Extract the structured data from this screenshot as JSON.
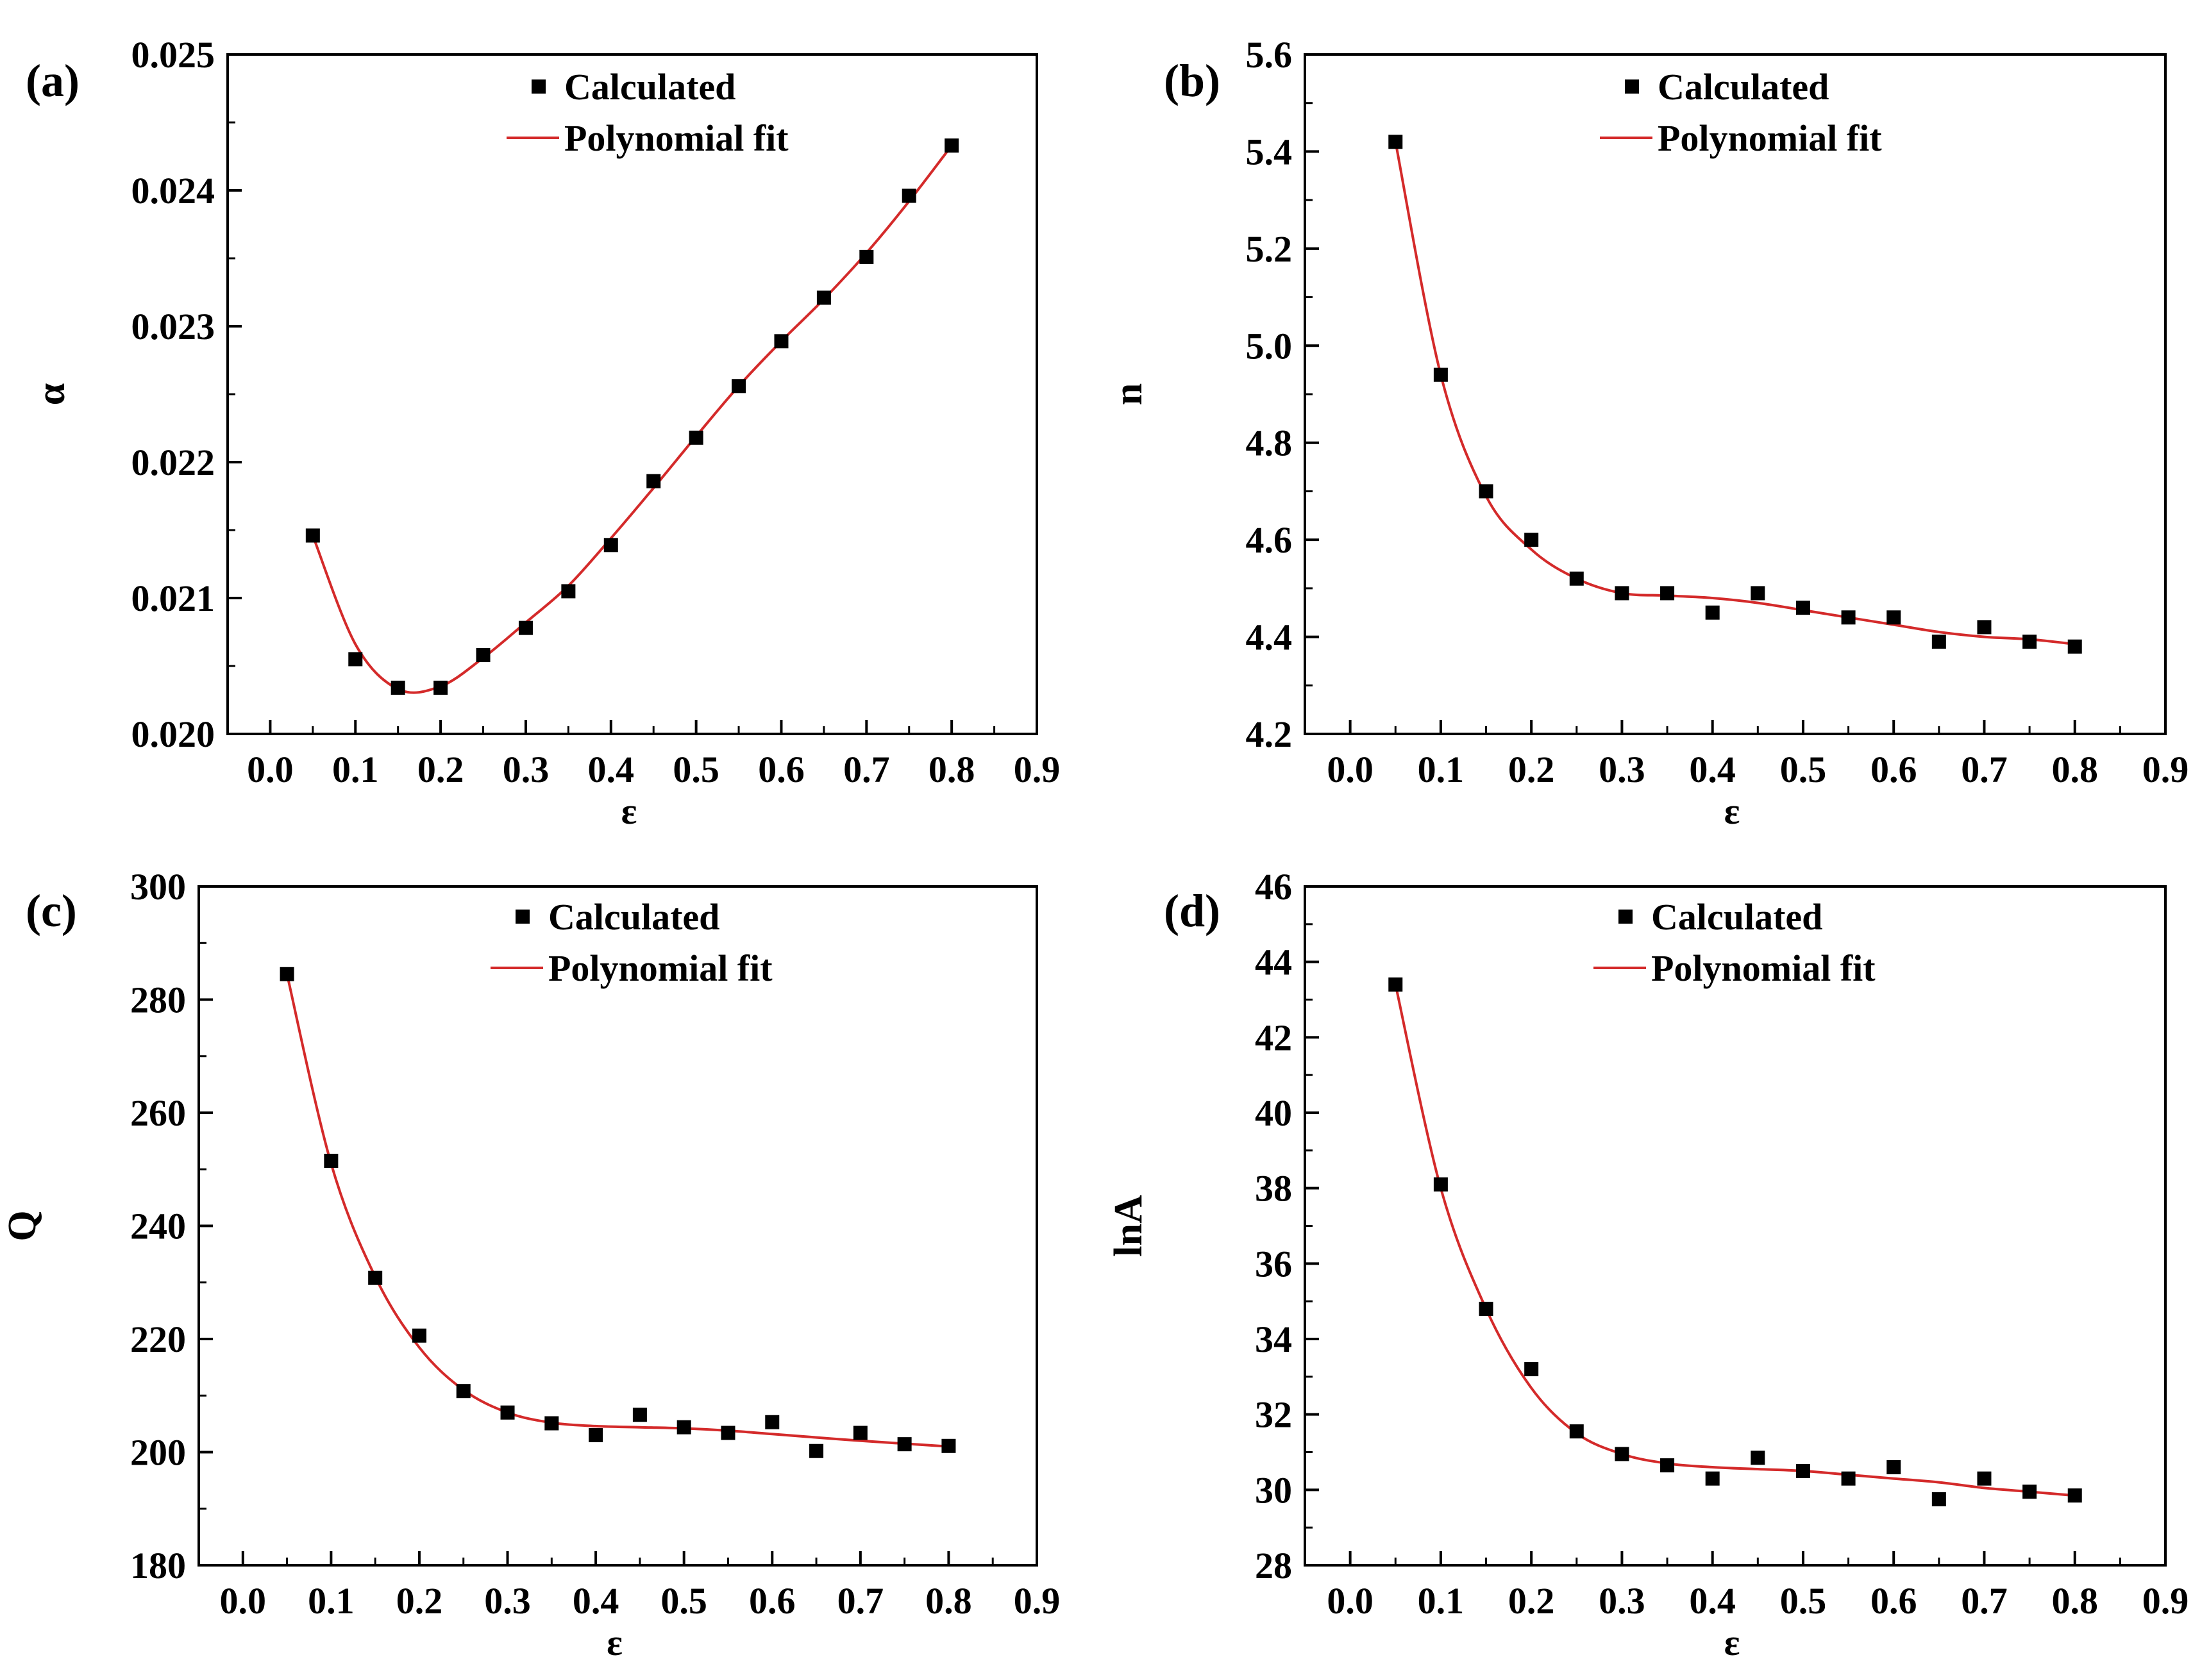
{
  "figure": {
    "legend": {
      "calculated": "Calculated",
      "fit": "Polynomial fit"
    },
    "x_axis_label": "ε",
    "x_tick_labels": [
      "0.0",
      "0.1",
      "0.2",
      "0.3",
      "0.4",
      "0.5",
      "0.6",
      "0.7",
      "0.8",
      "0.9"
    ],
    "colors": {
      "fit_line": "#d42a2a",
      "markers": "#000000",
      "axes": "#000000"
    }
  },
  "chart_data": [
    {
      "type": "scatter",
      "panel_label": "(a)",
      "ylabel": "α",
      "xlabel": "ε",
      "xlim": [
        -0.05,
        0.9
      ],
      "ylim": [
        0.02,
        0.025
      ],
      "y_ticks": [
        0.02,
        0.021,
        0.022,
        0.023,
        0.024,
        0.025
      ],
      "y_tick_labels": [
        "0.020",
        "0.021",
        "0.022",
        "0.023",
        "0.024",
        "0.025"
      ],
      "x": [
        0.05,
        0.1,
        0.15,
        0.2,
        0.25,
        0.3,
        0.35,
        0.4,
        0.45,
        0.5,
        0.55,
        0.6,
        0.65,
        0.7,
        0.75,
        0.8
      ],
      "series": [
        {
          "name": "Calculated",
          "values": [
            0.02146,
            0.02055,
            0.02034,
            0.02034,
            0.02058,
            0.02078,
            0.02105,
            0.02139,
            0.02186,
            0.02218,
            0.02256,
            0.02289,
            0.02321,
            0.02351,
            0.02396,
            0.02433
          ]
        },
        {
          "name": "Polynomial fit",
          "values": [
            0.02146,
            0.02066,
            0.02033,
            0.02035,
            0.02056,
            0.02082,
            0.02109,
            0.02144,
            0.02181,
            0.02219,
            0.02256,
            0.02289,
            0.0232,
            0.02354,
            0.02392,
            0.02433
          ]
        }
      ],
      "legend_position": "top-center"
    },
    {
      "type": "scatter",
      "panel_label": "(b)",
      "ylabel": "n",
      "xlabel": "ε",
      "xlim": [
        -0.05,
        0.9
      ],
      "ylim": [
        4.2,
        5.6
      ],
      "y_ticks": [
        4.2,
        4.4,
        4.6,
        4.8,
        5.0,
        5.2,
        5.4,
        5.6
      ],
      "y_tick_labels": [
        "4.2",
        "4.4",
        "4.6",
        "4.8",
        "5.0",
        "5.2",
        "5.4",
        "5.6"
      ],
      "x": [
        0.05,
        0.1,
        0.15,
        0.2,
        0.25,
        0.3,
        0.35,
        0.4,
        0.45,
        0.5,
        0.55,
        0.6,
        0.65,
        0.7,
        0.75,
        0.8
      ],
      "series": [
        {
          "name": "Calculated",
          "values": [
            5.42,
            4.94,
            4.7,
            4.6,
            4.52,
            4.49,
            4.49,
            4.45,
            4.49,
            4.46,
            4.44,
            4.44,
            4.39,
            4.42,
            4.39,
            4.38
          ]
        },
        {
          "name": "Polynomial fit",
          "values": [
            5.42,
            4.94,
            4.69,
            4.58,
            4.52,
            4.49,
            4.485,
            4.48,
            4.47,
            4.455,
            4.44,
            4.425,
            4.41,
            4.4,
            4.395,
            4.385
          ]
        }
      ],
      "legend_position": "top-center"
    },
    {
      "type": "scatter",
      "panel_label": "(c)",
      "ylabel": "Q",
      "xlabel": "ε",
      "xlim": [
        -0.05,
        0.9
      ],
      "ylim": [
        180,
        300
      ],
      "y_ticks": [
        180,
        200,
        220,
        240,
        260,
        280,
        300
      ],
      "y_tick_labels": [
        "180",
        "200",
        "220",
        "240",
        "260",
        "280",
        "300"
      ],
      "x": [
        0.05,
        0.1,
        0.15,
        0.2,
        0.25,
        0.3,
        0.35,
        0.4,
        0.45,
        0.5,
        0.55,
        0.6,
        0.65,
        0.7,
        0.75,
        0.8
      ],
      "series": [
        {
          "name": "Calculated",
          "values": [
            284.5,
            251.5,
            230.8,
            220.6,
            210.8,
            207.0,
            205.1,
            203.0,
            206.6,
            204.4,
            203.4,
            205.3,
            200.2,
            203.4,
            201.4,
            201.1
          ]
        },
        {
          "name": "Polynomial fit",
          "values": [
            284.5,
            251.0,
            231.0,
            218.5,
            211.0,
            207.0,
            205.2,
            204.6,
            204.4,
            204.2,
            203.8,
            203.2,
            202.6,
            202.0,
            201.5,
            201.0
          ]
        }
      ],
      "legend_position": "top-center"
    },
    {
      "type": "scatter",
      "panel_label": "(d)",
      "ylabel": "lnA",
      "xlabel": "ε",
      "xlim": [
        -0.05,
        0.9
      ],
      "ylim": [
        28,
        46
      ],
      "y_ticks": [
        28,
        30,
        32,
        34,
        36,
        38,
        40,
        42,
        44,
        46
      ],
      "y_tick_labels": [
        "28",
        "30",
        "32",
        "34",
        "36",
        "38",
        "40",
        "42",
        "44",
        "46"
      ],
      "x": [
        0.05,
        0.1,
        0.15,
        0.2,
        0.25,
        0.3,
        0.35,
        0.4,
        0.45,
        0.5,
        0.55,
        0.6,
        0.65,
        0.7,
        0.75,
        0.8
      ],
      "series": [
        {
          "name": "Calculated",
          "values": [
            43.4,
            38.1,
            34.8,
            33.2,
            31.55,
            30.95,
            30.65,
            30.3,
            30.85,
            30.5,
            30.3,
            30.6,
            29.75,
            30.3,
            29.95,
            29.85
          ]
        },
        {
          "name": "Polynomial fit",
          "values": [
            43.4,
            38.0,
            34.8,
            32.7,
            31.5,
            30.95,
            30.7,
            30.6,
            30.55,
            30.5,
            30.4,
            30.3,
            30.2,
            30.05,
            29.95,
            29.85
          ]
        }
      ],
      "legend_position": "top-center"
    }
  ]
}
